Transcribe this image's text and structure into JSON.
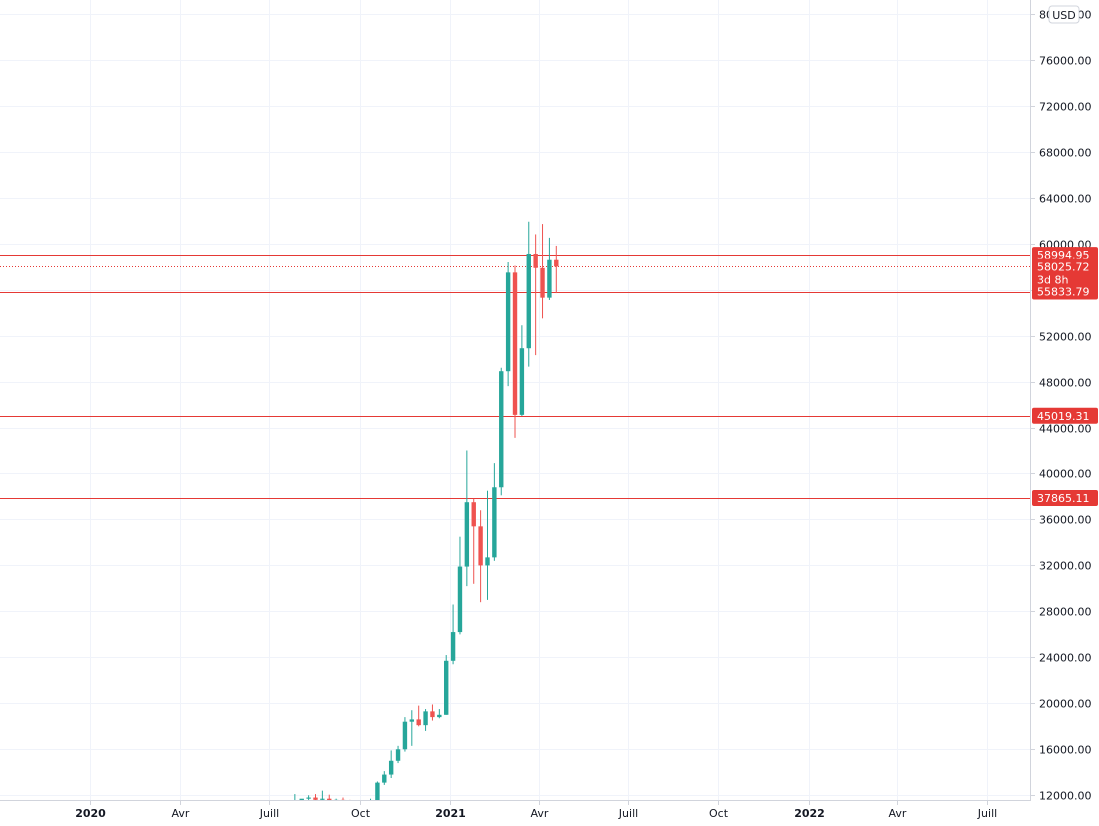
{
  "chart_data": {
    "type": "candlestick",
    "currency": "USD",
    "interval": "weekly",
    "ylim": [
      11500,
      81200
    ],
    "yticks": [
      12000,
      16000,
      20000,
      24000,
      28000,
      32000,
      36000,
      40000,
      44000,
      48000,
      52000,
      56000,
      60000,
      64000,
      68000,
      72000,
      76000,
      80000
    ],
    "ytick_labels": [
      "12000.00",
      "16000.00",
      "20000.00",
      "24000.00",
      "28000.00",
      "32000.00",
      "36000.00",
      "40000.00",
      "44000.00",
      "48000.00",
      "52000.00",
      "56000.00",
      "60000.00",
      "64000.00",
      "68000.00",
      "72000.00",
      "76000.00",
      "80000.00"
    ],
    "xlim": [
      "2019-10-01",
      "2022-08-15"
    ],
    "xticks": [
      {
        "date": "2020-01-01",
        "label": "2020",
        "bold": true
      },
      {
        "date": "2020-04-01",
        "label": "Avr",
        "bold": false
      },
      {
        "date": "2020-07-01",
        "label": "Juill",
        "bold": false
      },
      {
        "date": "2020-10-01",
        "label": "Oct",
        "bold": false
      },
      {
        "date": "2021-01-01",
        "label": "2021",
        "bold": true
      },
      {
        "date": "2021-04-01",
        "label": "Avr",
        "bold": false
      },
      {
        "date": "2021-07-01",
        "label": "Juill",
        "bold": false
      },
      {
        "date": "2021-10-01",
        "label": "Oct",
        "bold": false
      },
      {
        "date": "2022-01-01",
        "label": "2022",
        "bold": true
      },
      {
        "date": "2022-04-01",
        "label": "Avr",
        "bold": false
      },
      {
        "date": "2022-07-01",
        "label": "Juill",
        "bold": false
      }
    ],
    "candles": [
      {
        "date": "2020-07-27",
        "o": 11050,
        "h": 12100,
        "l": 10900,
        "c": 11300
      },
      {
        "date": "2020-08-03",
        "o": 11300,
        "h": 11500,
        "l": 11000,
        "c": 11700
      },
      {
        "date": "2020-08-10",
        "o": 11700,
        "h": 12000,
        "l": 11100,
        "c": 11800
      },
      {
        "date": "2020-08-17",
        "o": 11800,
        "h": 12100,
        "l": 11500,
        "c": 11600
      },
      {
        "date": "2020-08-24",
        "o": 11600,
        "h": 12400,
        "l": 11200,
        "c": 11700
      },
      {
        "date": "2020-08-31",
        "o": 11700,
        "h": 12050,
        "l": 10000,
        "c": 11500
      },
      {
        "date": "2020-09-07",
        "o": 11500,
        "h": 11700,
        "l": 11100,
        "c": 11600
      },
      {
        "date": "2020-09-14",
        "o": 11600,
        "h": 11800,
        "l": 10900,
        "c": 11500
      },
      {
        "date": "2020-09-21",
        "o": 11500,
        "h": 11600,
        "l": 10200,
        "c": 10800
      },
      {
        "date": "2020-09-28",
        "o": 10800,
        "h": 11000,
        "l": 10500,
        "c": 10700
      },
      {
        "date": "2020-10-05",
        "o": 10700,
        "h": 11400,
        "l": 10500,
        "c": 11100
      },
      {
        "date": "2020-10-12",
        "o": 11100,
        "h": 11700,
        "l": 11000,
        "c": 11500
      },
      {
        "date": "2020-10-19",
        "o": 11500,
        "h": 13200,
        "l": 11400,
        "c": 13100
      },
      {
        "date": "2020-10-26",
        "o": 13100,
        "h": 14100,
        "l": 12900,
        "c": 13800
      },
      {
        "date": "2020-11-02",
        "o": 13800,
        "h": 15900,
        "l": 13500,
        "c": 15000
      },
      {
        "date": "2020-11-09",
        "o": 15000,
        "h": 16300,
        "l": 14800,
        "c": 16000
      },
      {
        "date": "2020-11-16",
        "o": 16000,
        "h": 18800,
        "l": 15800,
        "c": 18400
      },
      {
        "date": "2020-11-23",
        "o": 18400,
        "h": 19400,
        "l": 16300,
        "c": 18600
      },
      {
        "date": "2020-11-30",
        "o": 18600,
        "h": 19800,
        "l": 18000,
        "c": 18100
      },
      {
        "date": "2020-12-07",
        "o": 18100,
        "h": 19500,
        "l": 17600,
        "c": 19300
      },
      {
        "date": "2020-12-14",
        "o": 19300,
        "h": 19900,
        "l": 18500,
        "c": 18800
      },
      {
        "date": "2020-12-21",
        "o": 18800,
        "h": 19500,
        "l": 18700,
        "c": 19000
      },
      {
        "date": "2020-12-28",
        "o": 19000,
        "h": 24200,
        "l": 19000,
        "c": 23700
      },
      {
        "date": "2021-01-04",
        "o": 23700,
        "h": 28600,
        "l": 23400,
        "c": 26200
      },
      {
        "date": "2021-01-11",
        "o": 26200,
        "h": 34500,
        "l": 26000,
        "c": 31900
      },
      {
        "date": "2021-01-18",
        "o": 31900,
        "h": 42000,
        "l": 30200,
        "c": 37500
      },
      {
        "date": "2021-01-25",
        "o": 37500,
        "h": 37800,
        "l": 30400,
        "c": 35400
      },
      {
        "date": "2021-02-01",
        "o": 35400,
        "h": 36800,
        "l": 28800,
        "c": 32000
      },
      {
        "date": "2021-02-08",
        "o": 32000,
        "h": 38500,
        "l": 29000,
        "c": 32700
      },
      {
        "date": "2021-02-15",
        "o": 32700,
        "h": 40900,
        "l": 32400,
        "c": 38800
      },
      {
        "date": "2021-02-22",
        "o": 38800,
        "h": 49200,
        "l": 38100,
        "c": 48900
      },
      {
        "date": "2021-03-01",
        "o": 48900,
        "h": 58400,
        "l": 47600,
        "c": 57500
      },
      {
        "date": "2021-03-08",
        "o": 57500,
        "h": 58100,
        "l": 43100,
        "c": 45100
      },
      {
        "date": "2021-03-15",
        "o": 45100,
        "h": 52900,
        "l": 45000,
        "c": 50900
      },
      {
        "date": "2021-03-22",
        "o": 50900,
        "h": 61900,
        "l": 49300,
        "c": 59100
      },
      {
        "date": "2021-03-29",
        "o": 59100,
        "h": 60800,
        "l": 50300,
        "c": 57900
      },
      {
        "date": "2021-04-05",
        "o": 57900,
        "h": 61700,
        "l": 53500,
        "c": 55300
      },
      {
        "date": "2021-04-12",
        "o": 55300,
        "h": 60500,
        "l": 55100,
        "c": 58600
      },
      {
        "date": "2021-04-19",
        "o": 58600,
        "h": 59800,
        "l": 55700,
        "c": 58025.72
      }
    ],
    "levels": [
      {
        "value": 58994.95,
        "label": "58994.95"
      },
      {
        "value": 55833.79,
        "label": "55833.79"
      },
      {
        "value": 45019.31,
        "label": "45019.31"
      },
      {
        "value": 37865.11,
        "label": "37865.11"
      }
    ],
    "current": {
      "value": 58025.72,
      "label": "58025.72",
      "countdown": "3d 8h"
    },
    "colors": {
      "up": "#26a69a",
      "down": "#ef5350",
      "level": "#e53935",
      "grid": "#f0f3fa",
      "axis": "#131722",
      "border": "#d1d4dc"
    }
  }
}
